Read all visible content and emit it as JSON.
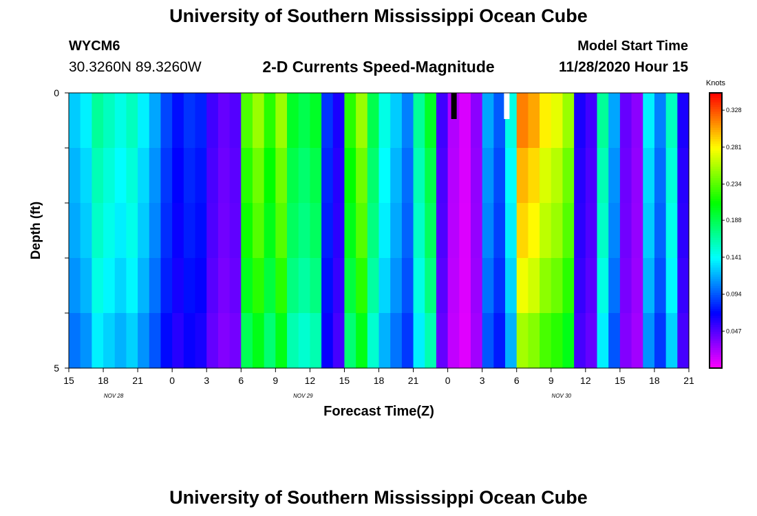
{
  "header": {
    "title": "University of Southern Mississippi Ocean Cube",
    "station": "WYCM6",
    "coordinates": "30.3260N 89.3260W",
    "subtitle": "2-D Currents Speed-Magnitude",
    "model_start_label": "Model Start Time",
    "model_start_value": "11/28/2020 Hour 15"
  },
  "footer": {
    "title": "University of Southern Mississippi Ocean Cube"
  },
  "chart_data": {
    "type": "heatmap",
    "xlabel": "Forecast Time(Z)",
    "ylabel": "Depth (ft)",
    "x_ticks": [
      "15",
      "18",
      "21",
      "0",
      "3",
      "6",
      "9",
      "12",
      "15",
      "18",
      "21",
      "0",
      "3",
      "6",
      "9",
      "12",
      "15",
      "18",
      "21"
    ],
    "month_labels": [
      {
        "text": "NOV 28",
        "tick_index": 1.3
      },
      {
        "text": "NOV 29",
        "tick_index": 6.8
      },
      {
        "text": "NOV 30",
        "tick_index": 14.3
      }
    ],
    "y_ticks": [
      "0",
      "5"
    ],
    "y_range": [
      0,
      5
    ],
    "x_range_hours": [
      0,
      54
    ],
    "colorbar": {
      "title": "Knots",
      "ticks": [
        0.047,
        0.094,
        0.141,
        0.188,
        0.234,
        0.281,
        0.328
      ],
      "tick_labels": [
        "0.047",
        "0.094",
        "0.141",
        "0.188",
        "0.234",
        "0.281",
        "0.328"
      ],
      "range": [
        0.0,
        0.35
      ]
    },
    "depth_rows": [
      0,
      1,
      2,
      3,
      4
    ],
    "hour_profile": [
      {
        "h": 0,
        "v": 0.12
      },
      {
        "h": 1,
        "v": 0.13
      },
      {
        "h": 2,
        "v": 0.16
      },
      {
        "h": 3,
        "v": 0.15
      },
      {
        "h": 4,
        "v": 0.14
      },
      {
        "h": 5,
        "v": 0.15
      },
      {
        "h": 6,
        "v": 0.13
      },
      {
        "h": 7,
        "v": 0.11
      },
      {
        "h": 8,
        "v": 0.085
      },
      {
        "h": 9,
        "v": 0.07
      },
      {
        "h": 10,
        "v": 0.08
      },
      {
        "h": 11,
        "v": 0.075
      },
      {
        "h": 12,
        "v": 0.05
      },
      {
        "h": 13,
        "v": 0.04
      },
      {
        "h": 14,
        "v": 0.045
      },
      {
        "h": 15,
        "v": 0.22
      },
      {
        "h": 16,
        "v": 0.24
      },
      {
        "h": 17,
        "v": 0.21
      },
      {
        "h": 18,
        "v": 0.24
      },
      {
        "h": 19,
        "v": 0.19
      },
      {
        "h": 20,
        "v": 0.18
      },
      {
        "h": 21,
        "v": 0.19
      },
      {
        "h": 22,
        "v": 0.08
      },
      {
        "h": 23,
        "v": 0.06
      },
      {
        "h": 24,
        "v": 0.21
      },
      {
        "h": 25,
        "v": 0.24
      },
      {
        "h": 26,
        "v": 0.18
      },
      {
        "h": 27,
        "v": 0.14
      },
      {
        "h": 28,
        "v": 0.12
      },
      {
        "h": 29,
        "v": 0.1
      },
      {
        "h": 30,
        "v": 0.16
      },
      {
        "h": 31,
        "v": 0.19
      },
      {
        "h": 32,
        "v": 0.05
      },
      {
        "h": 33,
        "v": 0.02
      },
      {
        "h": 34,
        "v": 0.01
      },
      {
        "h": 35,
        "v": 0.03
      },
      {
        "h": 36,
        "v": 0.11
      },
      {
        "h": 37,
        "v": 0.09
      },
      {
        "h": 38,
        "v": 0.14
      },
      {
        "h": 39,
        "v": 0.3
      },
      {
        "h": 40,
        "v": 0.29
      },
      {
        "h": 41,
        "v": 0.27
      },
      {
        "h": 42,
        "v": 0.26
      },
      {
        "h": 43,
        "v": 0.24
      },
      {
        "h": 44,
        "v": 0.06
      },
      {
        "h": 45,
        "v": 0.05
      },
      {
        "h": 46,
        "v": 0.16
      },
      {
        "h": 47,
        "v": 0.11
      },
      {
        "h": 48,
        "v": 0.04
      },
      {
        "h": 49,
        "v": 0.03
      },
      {
        "h": 50,
        "v": 0.13
      },
      {
        "h": 51,
        "v": 0.1
      },
      {
        "h": 52,
        "v": 0.15
      },
      {
        "h": 53,
        "v": 0.06
      }
    ],
    "depth_factor": [
      1.05,
      1.0,
      0.97,
      0.92,
      0.85
    ],
    "missing_cells": [
      {
        "h": 33.3,
        "row": 0,
        "color": "#000000"
      },
      {
        "h": 37.9,
        "row": 0,
        "color": "#ffffff"
      }
    ]
  }
}
